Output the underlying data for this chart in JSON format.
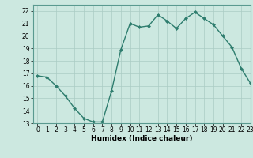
{
  "x": [
    0,
    1,
    2,
    3,
    4,
    5,
    6,
    7,
    8,
    9,
    10,
    11,
    12,
    13,
    14,
    15,
    16,
    17,
    18,
    19,
    20,
    21,
    22,
    23
  ],
  "y": [
    16.8,
    16.7,
    16.0,
    15.2,
    14.2,
    13.4,
    13.1,
    13.1,
    15.6,
    18.9,
    21.0,
    20.7,
    20.8,
    21.7,
    21.2,
    20.6,
    21.4,
    21.9,
    21.4,
    20.9,
    20.0,
    19.1,
    17.4,
    16.2
  ],
  "line_color": "#2e7d6e",
  "marker": "D",
  "marker_size": 2.0,
  "bg_color": "#cce8e0",
  "grid_color": "#aaccc4",
  "xlabel": "Humidex (Indice chaleur)",
  "ylim": [
    13,
    22.5
  ],
  "xlim": [
    -0.5,
    23
  ],
  "yticks": [
    13,
    14,
    15,
    16,
    17,
    18,
    19,
    20,
    21,
    22
  ],
  "xticks": [
    0,
    1,
    2,
    3,
    4,
    5,
    6,
    7,
    8,
    9,
    10,
    11,
    12,
    13,
    14,
    15,
    16,
    17,
    18,
    19,
    20,
    21,
    22,
    23
  ],
  "tick_fontsize": 5.5,
  "xlabel_fontsize": 6.5,
  "linewidth": 1.0
}
